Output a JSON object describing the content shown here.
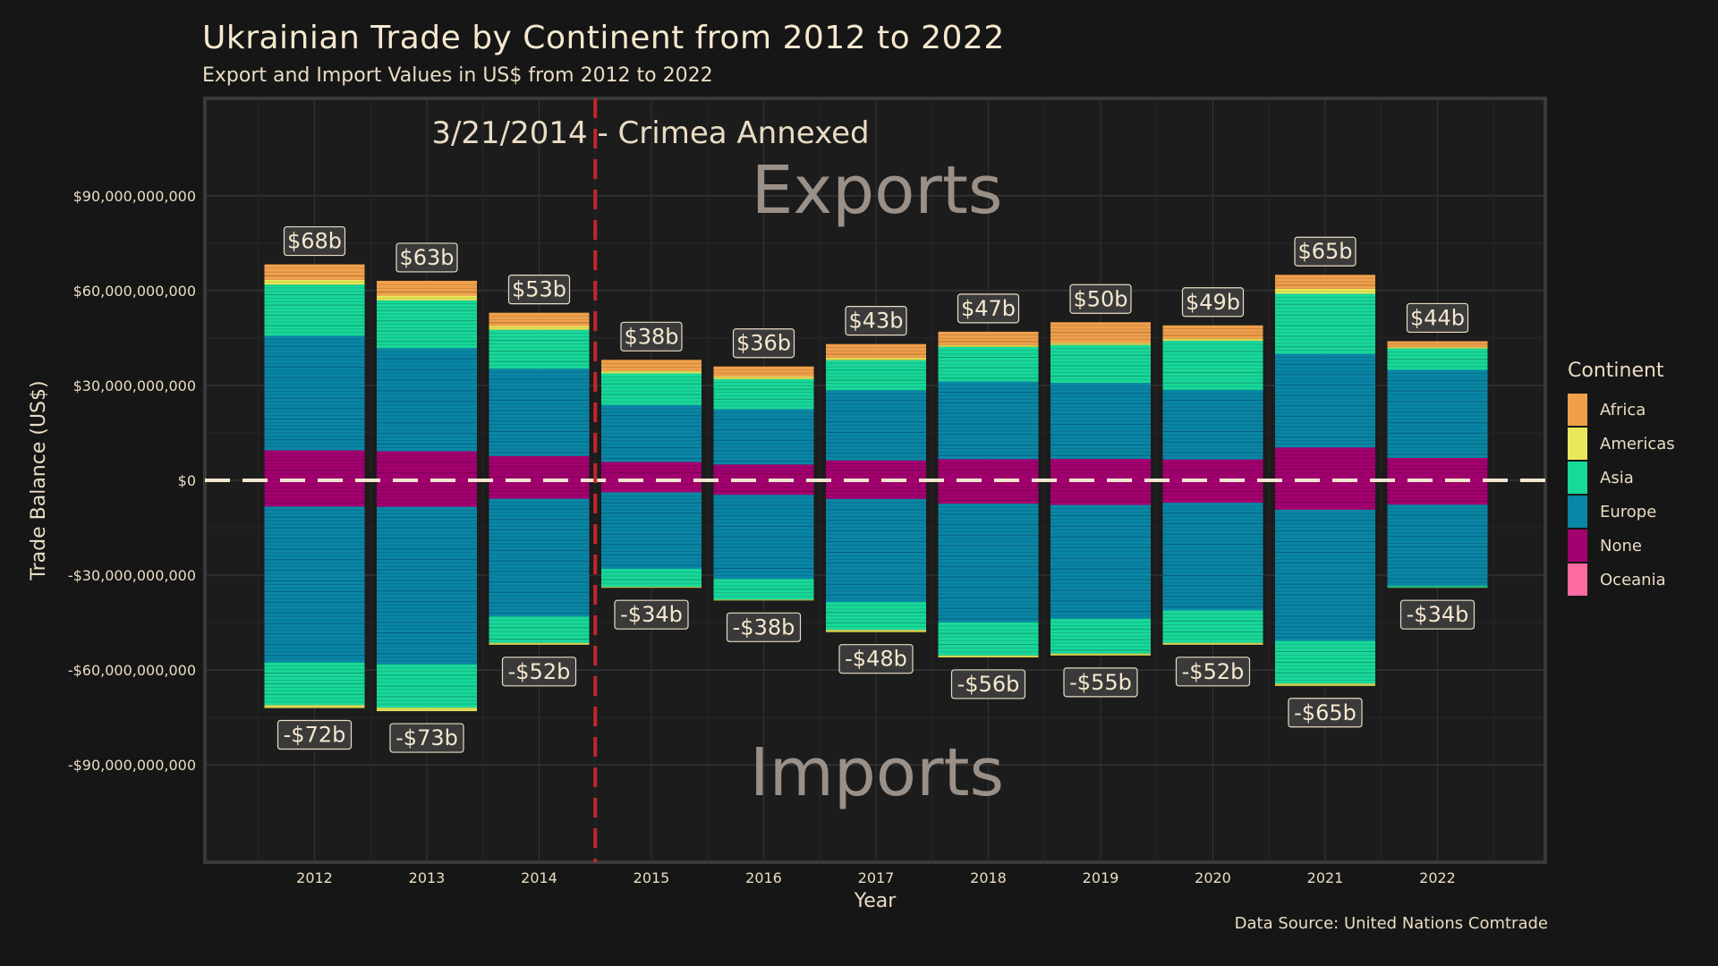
{
  "title": "Ukrainian Trade by Continent from 2012 to 2022",
  "subtitle": "Export and Import Values in US$ from 2012 to 2022",
  "caption": "Data Source: United Nations Comtrade",
  "legend": {
    "title": "Continent",
    "items": [
      {
        "name": "Africa",
        "color": "#f0a04b"
      },
      {
        "name": "Americas",
        "color": "#e9e85a"
      },
      {
        "name": "Asia",
        "color": "#18d89a"
      },
      {
        "name": "Europe",
        "color": "#0a86a6"
      },
      {
        "name": "None",
        "color": "#a3006f"
      },
      {
        "name": "Oceania",
        "color": "#ff6aa2"
      }
    ]
  },
  "annotations": {
    "event_label": "3/21/2014 - Crimea Annexed",
    "event_x": 2014.5,
    "exports_word": "Exports",
    "imports_word": "Imports"
  },
  "chart_data": {
    "type": "bar",
    "stacked": true,
    "title": "Ukrainian Trade by Continent from 2012 to 2022",
    "subtitle": "Export and Import Values in US$ from 2012 to 2022",
    "xlabel": "Year",
    "ylabel": "Trade Balance (US$)",
    "ylim": [
      -98000000000,
      98000000000
    ],
    "yticks": [
      -90000000000,
      -60000000000,
      -30000000000,
      0,
      30000000000,
      60000000000,
      90000000000
    ],
    "ytick_labels": [
      "-$90,000,000,000",
      "-$60,000,000,000",
      "-$30,000,000,000",
      "$0",
      "$30,000,000,000",
      "$60,000,000,000",
      "$90,000,000,000"
    ],
    "categories": [
      "2012",
      "2013",
      "2014",
      "2015",
      "2016",
      "2017",
      "2018",
      "2019",
      "2020",
      "2021",
      "2022"
    ],
    "grid": true,
    "legend_position": "right",
    "export_series": [
      {
        "name": "None",
        "values": [
          9.5,
          9.2,
          7.7,
          5.8,
          5.0,
          6.3,
          6.7,
          6.8,
          6.6,
          10.4,
          7.1
        ]
      },
      {
        "name": "Europe",
        "values": [
          36.2,
          32.6,
          27.6,
          18.0,
          17.5,
          22.2,
          24.5,
          24.0,
          22.0,
          29.6,
          27.8
        ]
      },
      {
        "name": "Asia",
        "values": [
          16.2,
          15.1,
          12.3,
          10.0,
          9.5,
          9.5,
          11.0,
          12.0,
          15.5,
          19.0,
          6.8
        ]
      },
      {
        "name": "Americas",
        "values": [
          1.5,
          1.5,
          1.2,
          0.8,
          0.8,
          0.8,
          0.6,
          0.7,
          0.7,
          1.6,
          0.5
        ]
      },
      {
        "name": "Africa",
        "values": [
          4.9,
          4.7,
          4.2,
          3.5,
          3.2,
          4.3,
          4.2,
          6.5,
          4.2,
          4.4,
          1.8
        ]
      }
    ],
    "import_series": [
      {
        "name": "None",
        "values": [
          -8.3,
          -8.4,
          -5.8,
          -3.8,
          -4.6,
          -5.9,
          -7.4,
          -7.8,
          -7.1,
          -9.3,
          -7.7
        ]
      },
      {
        "name": "Europe",
        "values": [
          -49.3,
          -49.8,
          -37.3,
          -24.2,
          -26.6,
          -32.6,
          -37.5,
          -36.0,
          -34.0,
          -41.5,
          -25.6
        ]
      },
      {
        "name": "Asia",
        "values": [
          -13.5,
          -13.7,
          -8.3,
          -5.7,
          -6.5,
          -8.8,
          -10.5,
          -11.0,
          -10.3,
          -13.5,
          -0.6
        ]
      },
      {
        "name": "Americas",
        "values": [
          -0.9,
          -1.1,
          -0.6,
          -0.3,
          -0.3,
          -0.7,
          -0.6,
          -0.6,
          -0.6,
          -0.7,
          -0.1
        ]
      }
    ],
    "value_unit": "billions of US$",
    "export_labels": [
      "$68b",
      "$63b",
      "$53b",
      "$38b",
      "$36b",
      "$43b",
      "$47b",
      "$50b",
      "$49b",
      "$65b",
      "$44b"
    ],
    "import_labels": [
      "-$72b",
      "-$73b",
      "-$52b",
      "-$34b",
      "-$38b",
      "-$48b",
      "-$56b",
      "-$55b",
      "-$52b",
      "-$65b",
      "-$34b"
    ]
  }
}
